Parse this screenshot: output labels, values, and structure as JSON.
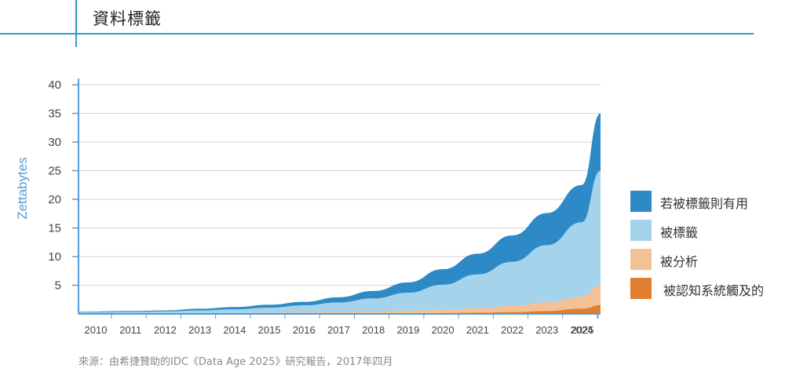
{
  "header": {
    "title": "資料標籤"
  },
  "source_note": "來源：由希捷贊助的IDC《Data Age 2025》研究報告，2017年四月",
  "colors": {
    "accent": "#2f9ac9",
    "axis": "#5b9bd0",
    "grid": "#cfd6dd",
    "series": [
      "#2e8ac6",
      "#a5d3ec",
      "#f2c196",
      "#e07f32"
    ]
  },
  "chart_data": {
    "type": "area",
    "stacked": false,
    "ylabel": "Zettabytes",
    "xlabel": "",
    "ylim": [
      0,
      40
    ],
    "yticks": [
      5,
      10,
      15,
      20,
      25,
      30,
      35,
      40
    ],
    "x": [
      "2010",
      "2011",
      "2012",
      "2013",
      "2014",
      "2015",
      "2016",
      "2017",
      "2018",
      "2019",
      "2020",
      "2021",
      "2022",
      "2023",
      "2024",
      "2025"
    ],
    "grid": true,
    "legend_position": "right",
    "series": [
      {
        "name": "若被標籤則有用",
        "values": [
          0.4,
          0.5,
          0.6,
          0.9,
          1.2,
          1.6,
          2.1,
          2.9,
          4.0,
          5.5,
          7.8,
          10.5,
          13.7,
          17.6,
          22.5,
          35.0
        ]
      },
      {
        "name": "被標籤",
        "values": [
          0.3,
          0.35,
          0.45,
          0.6,
          0.8,
          1.1,
          1.5,
          2.0,
          2.7,
          3.7,
          5.1,
          6.9,
          9.1,
          12.0,
          16.0,
          25.0
        ]
      },
      {
        "name": "被分析",
        "values": [
          0.05,
          0.06,
          0.08,
          0.1,
          0.13,
          0.17,
          0.22,
          0.3,
          0.4,
          0.55,
          0.75,
          1.0,
          1.4,
          2.0,
          3.0,
          5.0
        ]
      },
      {
        "name": "被認知系統觸及的",
        "values": [
          0.01,
          0.01,
          0.01,
          0.02,
          0.02,
          0.03,
          0.04,
          0.05,
          0.07,
          0.1,
          0.14,
          0.2,
          0.3,
          0.5,
          0.9,
          1.5
        ]
      }
    ]
  }
}
